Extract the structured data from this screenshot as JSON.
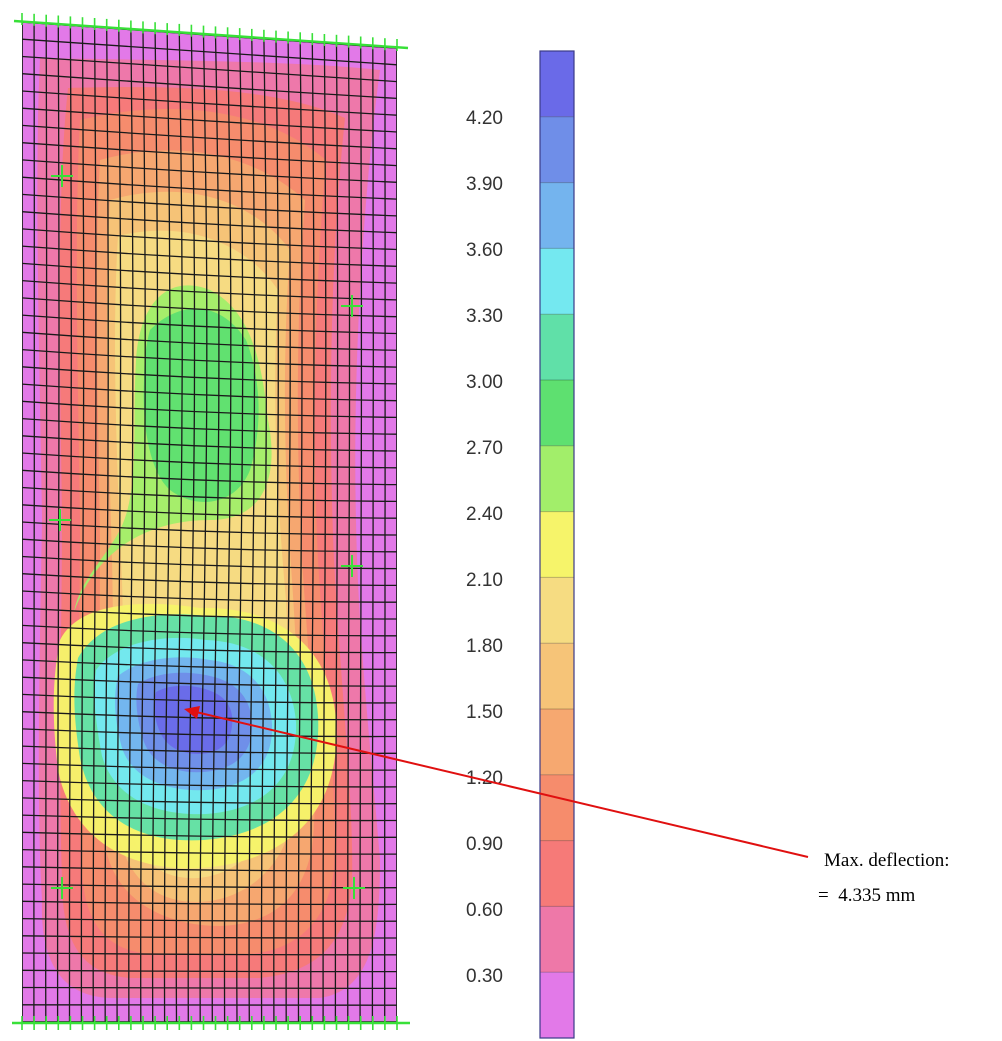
{
  "legend": {
    "tick_labels": [
      "4.20",
      "3.90",
      "3.60",
      "3.30",
      "3.00",
      "2.70",
      "2.40",
      "2.10",
      "1.80",
      "1.50",
      "1.20",
      "0.90",
      "0.60",
      "0.30"
    ],
    "band_colors": [
      "#6a6ae8",
      "#6f8ee8",
      "#74b4ee",
      "#74e8f0",
      "#60e0a8",
      "#5ee070",
      "#a2ee6a",
      "#f6f46a",
      "#f6dc82",
      "#f6c478",
      "#f6a870",
      "#f68c6c",
      "#f67a78",
      "#ee78a8",
      "#e279e8"
    ]
  },
  "annotation": {
    "line1": "Max. deflection:",
    "line2": "=  4.335 mm",
    "arrow_color": "#e01010"
  },
  "mesh": {
    "columns": 31,
    "rows": 58,
    "support_color": "#38e038",
    "line_color": "#1a1a1a",
    "deflection_contours": [
      {
        "color": "#e279e8"
      },
      {
        "color": "#ee78a8"
      },
      {
        "color": "#f67a78"
      },
      {
        "color": "#f68c6c"
      },
      {
        "color": "#f6a870"
      },
      {
        "color": "#f6c478"
      },
      {
        "color": "#f6dc82"
      },
      {
        "color": "#f6f46a"
      },
      {
        "color": "#a2ee6a"
      },
      {
        "color": "#5ee070"
      },
      {
        "color": "#60e0a8"
      },
      {
        "color": "#74e8f0"
      },
      {
        "color": "#74b4ee"
      },
      {
        "color": "#6f8ee8"
      },
      {
        "color": "#6a6ae8"
      }
    ]
  }
}
